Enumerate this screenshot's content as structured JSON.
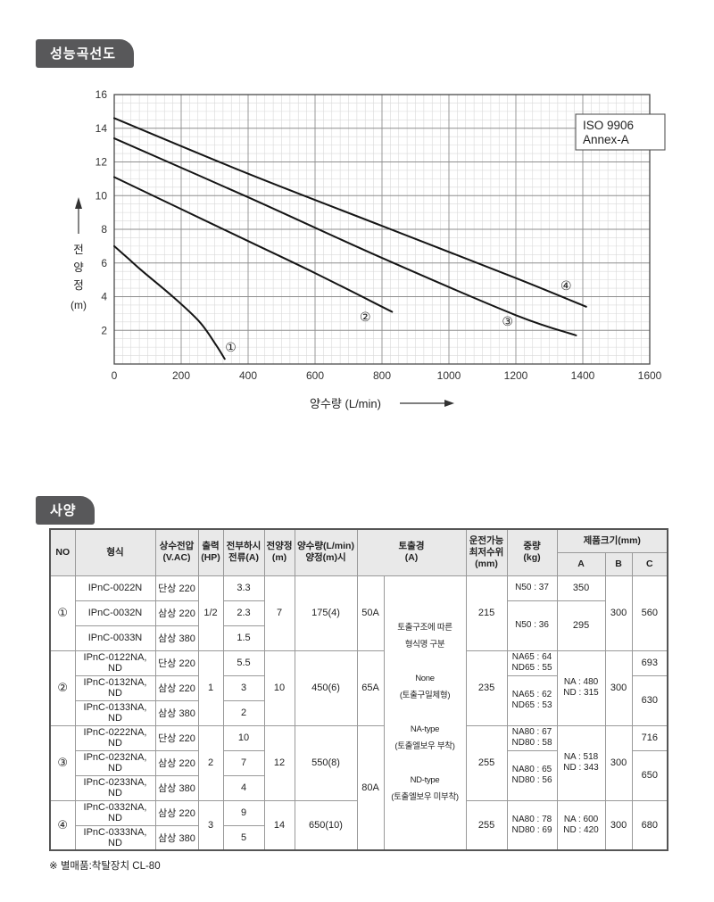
{
  "page": {
    "performance_title": "성능곡선도",
    "spec_title": "사양",
    "note": "※ 별매품:착탈장치 CL-80"
  },
  "chart_data": {
    "type": "line",
    "title": "성능곡선도",
    "xlabel": "양수량 (L/min)",
    "ylabel": "전양정 (m)",
    "ylabel_chars": [
      "전",
      "양",
      "정"
    ],
    "ylabel_unit": "(m)",
    "annotation_lines": [
      "ISO 9906",
      "Annex-A"
    ],
    "xlim": [
      0,
      1600
    ],
    "ylim": [
      0,
      16
    ],
    "xticks": [
      0,
      200,
      400,
      600,
      800,
      1000,
      1200,
      1400,
      1600
    ],
    "yticks": [
      2,
      4,
      6,
      8,
      10,
      12,
      14,
      16
    ],
    "grid": {
      "minor_x": 25,
      "minor_y": 0.5,
      "major_x": 200,
      "major_y": 2
    },
    "series": [
      {
        "name": "①",
        "points": [
          [
            0,
            7.0
          ],
          [
            40,
            6.3
          ],
          [
            85,
            5.5
          ],
          [
            175,
            4.0
          ],
          [
            255,
            2.5
          ],
          [
            305,
            1.1
          ],
          [
            330,
            0.3
          ]
        ],
        "label_at": [
          348,
          1.0
        ]
      },
      {
        "name": "②",
        "points": [
          [
            0,
            11.1
          ],
          [
            200,
            9.2
          ],
          [
            400,
            7.3
          ],
          [
            600,
            5.4
          ],
          [
            830,
            3.1
          ]
        ],
        "label_at": [
          750,
          2.8
        ]
      },
      {
        "name": "③",
        "points": [
          [
            0,
            13.4
          ],
          [
            400,
            9.9
          ],
          [
            800,
            6.3
          ],
          [
            1200,
            2.9
          ],
          [
            1380,
            1.7
          ]
        ],
        "label_at": [
          1175,
          2.55
        ]
      },
      {
        "name": "④",
        "points": [
          [
            0,
            14.6
          ],
          [
            400,
            11.3
          ],
          [
            800,
            8.2
          ],
          [
            1200,
            5.1
          ],
          [
            1410,
            3.4
          ]
        ],
        "label_at": [
          1350,
          4.65
        ]
      }
    ]
  },
  "spec_table": {
    "header_rows": [
      [
        {
          "t": "NO",
          "rs": 2
        },
        {
          "t": "형식",
          "rs": 2
        },
        {
          "t": [
            "상수전압",
            "(V.AC)"
          ],
          "rs": 2
        },
        {
          "t": [
            "출력",
            "(HP)"
          ],
          "rs": 2
        },
        {
          "t": [
            "전부하시",
            "전류(A)"
          ],
          "rs": 2
        },
        {
          "t": [
            "전양정",
            "(m)"
          ],
          "rs": 2
        },
        {
          "t": [
            "양수량(L/min)",
            "양정(m)시"
          ],
          "rs": 2
        },
        {
          "t": [
            "토출경",
            "(A)"
          ],
          "rs": 2,
          "cs": 2
        },
        {
          "t": [
            "운전가능",
            "최저수위",
            "(mm)"
          ],
          "rs": 2
        },
        {
          "t": [
            "중량",
            "(kg)"
          ],
          "rs": 2
        },
        {
          "t": "제품크기(mm)",
          "cs": 3
        }
      ],
      [
        {
          "t": "A"
        },
        {
          "t": "B"
        },
        {
          "t": "C"
        }
      ]
    ],
    "rows": [
      [
        {
          "t": "①",
          "rs": 3,
          "cls": "circ"
        },
        {
          "t": "IPnC-0022N"
        },
        {
          "t": "단상 220"
        },
        {
          "t": "1/2",
          "rs": 3
        },
        {
          "t": "3.3"
        },
        {
          "t": "7",
          "rs": 3
        },
        {
          "t": "175(4)",
          "rs": 3
        },
        {
          "t": "50A",
          "rs": 3
        },
        {
          "t": [
            "토출구조에 따른",
            "형식명 구분",
            "",
            "None",
            "(토출구일체형)",
            "",
            "NA-type",
            "(토출엘보우 부착)",
            "",
            "ND-type",
            "(토출엘보우 미부착)"
          ],
          "rs": 11,
          "cls": "note-cell"
        },
        {
          "t": "215",
          "rs": 3
        },
        {
          "t": "N50 : 37",
          "cls": "sm"
        },
        {
          "t": "350"
        },
        {
          "t": "300",
          "rs": 3
        },
        {
          "t": "560",
          "rs": 3
        }
      ],
      [
        {
          "t": "IPnC-0032N"
        },
        {
          "t": "삼상 220"
        },
        {
          "t": "2.3"
        },
        {
          "t": "N50 : 36",
          "rs": 2,
          "cls": "sm"
        },
        {
          "t": "295",
          "rs": 2
        }
      ],
      [
        {
          "t": "IPnC-0033N"
        },
        {
          "t": "삼상 380"
        },
        {
          "t": "1.5"
        }
      ],
      [
        {
          "t": "②",
          "rs": 3,
          "cls": "circ"
        },
        {
          "t": "IPnC-0122NA, ND"
        },
        {
          "t": "단상 220"
        },
        {
          "t": "1",
          "rs": 3
        },
        {
          "t": "5.5"
        },
        {
          "t": "10",
          "rs": 3
        },
        {
          "t": "450(6)",
          "rs": 3
        },
        {
          "t": "65A",
          "rs": 3
        },
        {
          "t": "235",
          "rs": 3
        },
        {
          "t": [
            "NA65 : 64",
            "ND65 : 55"
          ],
          "cls": "sm"
        },
        {
          "t": [
            "NA : 480",
            "ND : 315"
          ],
          "rs": 3,
          "cls": "sm"
        },
        {
          "t": "300",
          "rs": 3
        },
        {
          "t": "693"
        }
      ],
      [
        {
          "t": "IPnC-0132NA, ND"
        },
        {
          "t": "삼상 220"
        },
        {
          "t": "3"
        },
        {
          "t": [
            "NA65 : 62",
            "ND65 : 53"
          ],
          "rs": 2,
          "cls": "sm"
        },
        {
          "t": "630",
          "rs": 2
        }
      ],
      [
        {
          "t": "IPnC-0133NA, ND"
        },
        {
          "t": "삼상 380"
        },
        {
          "t": "2"
        }
      ],
      [
        {
          "t": "③",
          "rs": 3,
          "cls": "circ"
        },
        {
          "t": "IPnC-0222NA, ND"
        },
        {
          "t": "단상 220"
        },
        {
          "t": "2",
          "rs": 3
        },
        {
          "t": "10"
        },
        {
          "t": "12",
          "rs": 3
        },
        {
          "t": "550(8)",
          "rs": 3
        },
        {
          "t": "80A",
          "rs": 5
        },
        {
          "t": "255",
          "rs": 3
        },
        {
          "t": [
            "NA80 : 67",
            "ND80 : 58"
          ],
          "cls": "sm"
        },
        {
          "t": [
            "NA : 518",
            "ND : 343"
          ],
          "rs": 3,
          "cls": "sm"
        },
        {
          "t": "300",
          "rs": 3
        },
        {
          "t": "716"
        }
      ],
      [
        {
          "t": "IPnC-0232NA, ND"
        },
        {
          "t": "삼상 220"
        },
        {
          "t": "7"
        },
        {
          "t": [
            "NA80 : 65",
            "ND80 : 56"
          ],
          "rs": 2,
          "cls": "sm"
        },
        {
          "t": "650",
          "rs": 2
        }
      ],
      [
        {
          "t": "IPnC-0233NA, ND"
        },
        {
          "t": "삼상 380"
        },
        {
          "t": "4"
        }
      ],
      [
        {
          "t": "④",
          "rs": 2,
          "cls": "circ"
        },
        {
          "t": "IPnC-0332NA, ND"
        },
        {
          "t": "삼상 220"
        },
        {
          "t": "3",
          "rs": 2
        },
        {
          "t": "9"
        },
        {
          "t": "14",
          "rs": 2
        },
        {
          "t": "650(10)",
          "rs": 2
        },
        {
          "t": "255",
          "rs": 2
        },
        {
          "t": [
            "NA80 : 78",
            "ND80 : 69"
          ],
          "rs": 2,
          "cls": "sm"
        },
        {
          "t": [
            "NA : 600",
            "ND : 420"
          ],
          "rs": 2,
          "cls": "sm"
        },
        {
          "t": "300",
          "rs": 2
        },
        {
          "t": "680",
          "rs": 2
        }
      ],
      [
        {
          "t": "IPnC-0333NA, ND"
        },
        {
          "t": "삼상 380"
        },
        {
          "t": "5"
        }
      ]
    ]
  }
}
